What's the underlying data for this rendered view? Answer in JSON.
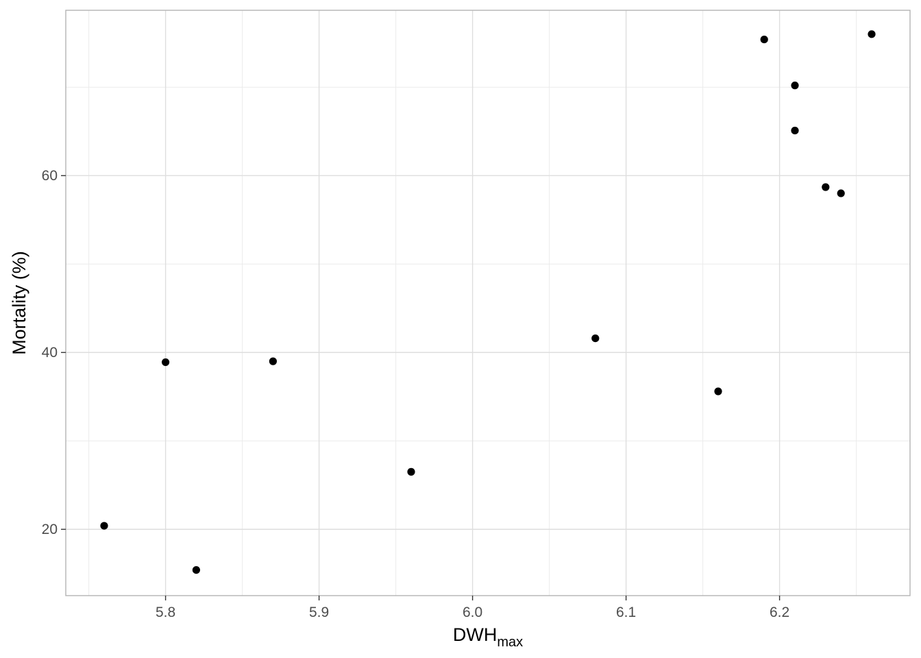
{
  "chart_data": {
    "type": "scatter",
    "xlabel": {
      "main": "DWH",
      "subscript": "max"
    },
    "ylabel": "Mortality (%)",
    "xlim": [
      5.735,
      6.285
    ],
    "ylim": [
      12.5,
      78.7
    ],
    "x_ticks": [
      5.8,
      5.9,
      6.0,
      6.1,
      6.2
    ],
    "x_tick_labels": [
      "5.8",
      "5.9",
      "6.0",
      "6.1",
      "6.2"
    ],
    "x_minor_ticks": [
      5.75,
      5.85,
      5.95,
      6.05,
      6.15,
      6.25
    ],
    "y_ticks": [
      20,
      40,
      60
    ],
    "y_tick_labels": [
      "20",
      "40",
      "60"
    ],
    "y_minor_ticks": [
      30,
      50,
      70
    ],
    "grid": true,
    "point_color": "#000000",
    "points": [
      {
        "x": 5.76,
        "y": 20.4
      },
      {
        "x": 5.8,
        "y": 38.9
      },
      {
        "x": 5.82,
        "y": 15.4
      },
      {
        "x": 5.87,
        "y": 39.0
      },
      {
        "x": 5.96,
        "y": 26.5
      },
      {
        "x": 6.08,
        "y": 41.6
      },
      {
        "x": 6.16,
        "y": 35.6
      },
      {
        "x": 6.19,
        "y": 75.4
      },
      {
        "x": 6.21,
        "y": 70.2
      },
      {
        "x": 6.21,
        "y": 65.1
      },
      {
        "x": 6.23,
        "y": 58.7
      },
      {
        "x": 6.24,
        "y": 58.0
      },
      {
        "x": 6.26,
        "y": 76.0
      }
    ]
  }
}
